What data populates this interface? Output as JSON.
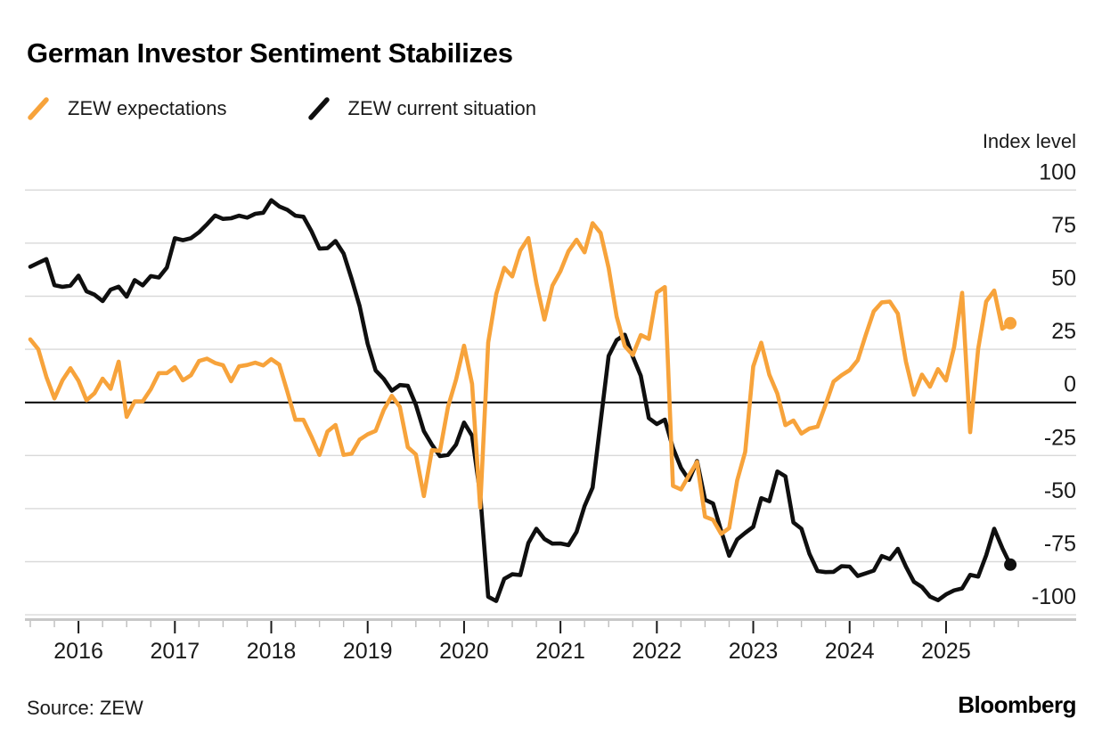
{
  "header": {
    "title": "German Investor Sentiment Stabilizes"
  },
  "legend": {
    "items": [
      {
        "label": "ZEW expectations",
        "color": "#F7A33B",
        "swatch": "diagonal-line"
      },
      {
        "label": "ZEW current situation",
        "color": "#0F0F0F",
        "swatch": "diagonal-line"
      }
    ]
  },
  "footer": {
    "source": "Source: ZEW",
    "brand": "Bloomberg"
  },
  "chart_data": {
    "type": "line",
    "title": "German Investor Sentiment Stabilizes",
    "unit_label": "Index level",
    "frequency": "monthly",
    "x_start": "2015-07",
    "x_end": "2025-09",
    "x_tick_labels": [
      "2016",
      "2017",
      "2018",
      "2019",
      "2020",
      "2021",
      "2022",
      "2023",
      "2024",
      "2025"
    ],
    "x_minor_ticks": "quarterly",
    "y_ticks": [
      100,
      75,
      50,
      25,
      0,
      -25,
      -50,
      -75,
      -100
    ],
    "ylim": [
      -100,
      100
    ],
    "zero_baseline": true,
    "grid": "horizontal",
    "legend_position": "top-left",
    "end_point_markers": true,
    "series": [
      {
        "name": "ZEW expectations",
        "color": "#F7A33B",
        "latest": 37.3,
        "values": [
          29.7,
          25.0,
          12.1,
          1.9,
          10.4,
          16.1,
          10.2,
          1.0,
          4.3,
          11.2,
          6.4,
          19.2,
          -6.8,
          0.5,
          0.5,
          6.2,
          13.8,
          13.8,
          16.6,
          10.4,
          12.8,
          19.5,
          20.6,
          18.6,
          17.5,
          10.0,
          17.0,
          17.6,
          18.7,
          17.4,
          20.4,
          17.8,
          5.1,
          -8.2,
          -8.2,
          -16.1,
          -24.7,
          -13.7,
          -10.6,
          -24.7,
          -24.1,
          -17.5,
          -15.0,
          -13.4,
          -3.6,
          3.1,
          -2.1,
          -21.1,
          -24.5,
          -44.1,
          -22.5,
          -22.8,
          -2.1,
          10.7,
          26.7,
          8.7,
          -49.5,
          28.2,
          51.0,
          63.4,
          59.3,
          71.5,
          77.4,
          56.1,
          39.0,
          55.0,
          61.8,
          71.2,
          76.6,
          70.7,
          84.4,
          79.8,
          63.3,
          40.4,
          26.5,
          22.3,
          31.7,
          29.9,
          51.7,
          54.3,
          -39.3,
          -41.0,
          -34.3,
          -28.0,
          -53.8,
          -55.3,
          -61.9,
          -59.2,
          -36.7,
          -23.3,
          16.9,
          28.1,
          13.0,
          4.1,
          -10.7,
          -8.5,
          -14.7,
          -12.3,
          -11.4,
          -1.1,
          9.8,
          12.8,
          15.2,
          19.9,
          31.7,
          42.9,
          47.1,
          47.5,
          41.8,
          19.2,
          3.6,
          13.1,
          7.4,
          15.7,
          10.3,
          26.0,
          51.6,
          -14.0,
          25.2,
          47.5,
          52.7,
          34.7,
          37.3
        ]
      },
      {
        "name": "ZEW current situation",
        "color": "#0F0F0F",
        "latest": -76.4,
        "values": [
          63.9,
          65.7,
          67.5,
          55.2,
          54.4,
          55.0,
          59.7,
          52.3,
          50.7,
          47.7,
          53.1,
          54.5,
          49.8,
          57.6,
          55.1,
          59.5,
          58.8,
          63.5,
          77.3,
          76.4,
          77.3,
          80.1,
          83.9,
          88.0,
          86.4,
          86.7,
          87.9,
          87.0,
          88.8,
          89.3,
          95.2,
          92.3,
          90.7,
          87.9,
          87.4,
          80.6,
          72.4,
          72.6,
          76.0,
          70.1,
          58.2,
          45.3,
          27.6,
          15.0,
          11.1,
          5.5,
          8.2,
          7.8,
          -1.1,
          -13.5,
          -19.9,
          -25.3,
          -24.7,
          -19.9,
          -9.5,
          -15.7,
          -43.1,
          -91.5,
          -93.5,
          -83.1,
          -80.9,
          -81.3,
          -66.2,
          -59.5,
          -64.3,
          -66.5,
          -66.4,
          -67.2,
          -61.0,
          -48.8,
          -40.1,
          -9.1,
          21.9,
          29.3,
          31.9,
          21.6,
          12.5,
          -7.4,
          -10.2,
          -8.1,
          -21.4,
          -30.8,
          -36.5,
          -27.6,
          -45.8,
          -47.6,
          -60.5,
          -72.2,
          -64.5,
          -61.4,
          -58.6,
          -45.1,
          -46.5,
          -32.5,
          -34.8,
          -56.5,
          -59.5,
          -71.3,
          -79.4,
          -79.9,
          -79.8,
          -77.1,
          -77.3,
          -81.7,
          -80.5,
          -79.2,
          -72.3,
          -73.8,
          -68.9,
          -77.3,
          -84.5,
          -86.9,
          -91.4,
          -93.1,
          -90.4,
          -88.5,
          -87.6,
          -81.2,
          -82.0,
          -72.0,
          -59.5,
          -68.6,
          -76.4
        ]
      }
    ],
    "style": {
      "gridline_color": "#D9D9D9",
      "zero_line_color": "#000000",
      "axis_line_color": "#C8C8C8",
      "major_tick_color": "#1A1A1A",
      "minor_tick_color": "#BDBDBD",
      "tick_label_color": "#1A1A1A"
    }
  }
}
